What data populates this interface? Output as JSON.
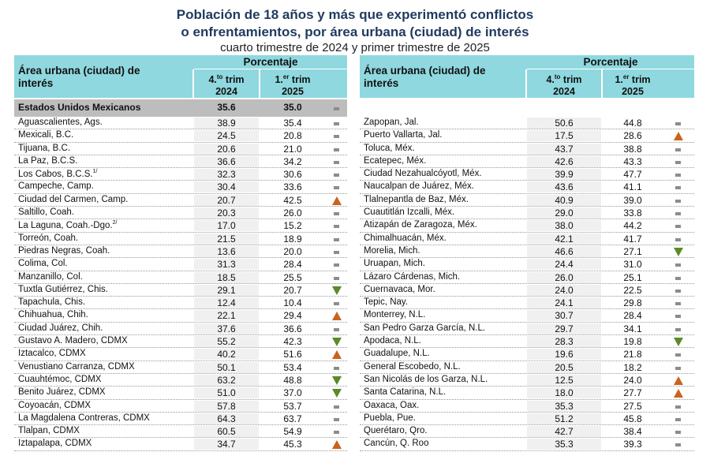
{
  "title": {
    "line1": "Población de 18 años y más que experimentó conflictos",
    "line2": "o enfrentamientos, por área urbana (ciudad) de interés",
    "subtitle": "cuarto trimestre de 2024 y primer trimestre de 2025"
  },
  "header": {
    "area_label": "Área urbana (ciudad) de interés",
    "percent_label": "Porcentaje",
    "col1_prefix": "4.",
    "col1_sup": "to",
    "col1_suffix": " trim",
    "col1_year": "2024",
    "col2_prefix": "1.",
    "col2_sup": "er",
    "col2_suffix": " trim",
    "col2_year": "2025"
  },
  "colors": {
    "header_bg": "#8fd8df",
    "total_bg": "#bdbdbd",
    "up": "#c8641e",
    "down": "#5b8a29",
    "equal": "#8c8c8c"
  },
  "total": {
    "name": "Estados Unidos Mexicanos",
    "v2024": "35.6",
    "v2025": "35.0",
    "trend": "eq"
  },
  "left_rows": [
    {
      "name": "Aguascalientes, Ags.",
      "v2024": "38.9",
      "v2025": "35.4",
      "trend": "eq"
    },
    {
      "name": "Mexicali, B.C.",
      "v2024": "24.5",
      "v2025": "20.8",
      "trend": "eq"
    },
    {
      "name": "Tijuana, B.C.",
      "v2024": "20.6",
      "v2025": "21.0",
      "trend": "eq"
    },
    {
      "name": "La Paz, B.C.S.",
      "v2024": "36.6",
      "v2025": "34.2",
      "trend": "eq"
    },
    {
      "name": "Los Cabos, B.C.S.",
      "note": "1/",
      "v2024": "32.3",
      "v2025": "30.6",
      "trend": "eq"
    },
    {
      "name": "Campeche, Camp.",
      "v2024": "30.4",
      "v2025": "33.6",
      "trend": "eq"
    },
    {
      "name": "Ciudad del Carmen, Camp.",
      "v2024": "20.7",
      "v2025": "42.5",
      "trend": "up"
    },
    {
      "name": "Saltillo, Coah.",
      "v2024": "20.3",
      "v2025": "26.0",
      "trend": "eq"
    },
    {
      "name": "La Laguna, Coah.-Dgo.",
      "note": "2/",
      "v2024": "17.0",
      "v2025": "15.2",
      "trend": "eq"
    },
    {
      "name": "Torreón, Coah.",
      "v2024": "21.5",
      "v2025": "18.9",
      "trend": "eq"
    },
    {
      "name": "Piedras Negras, Coah.",
      "v2024": "13.6",
      "v2025": "20.0",
      "trend": "eq"
    },
    {
      "name": "Colima, Col.",
      "v2024": "31.3",
      "v2025": "28.4",
      "trend": "eq"
    },
    {
      "name": "Manzanillo, Col.",
      "v2024": "18.5",
      "v2025": "25.5",
      "trend": "eq"
    },
    {
      "name": "Tuxtla Gutiérrez, Chis.",
      "v2024": "29.1",
      "v2025": "20.7",
      "trend": "down"
    },
    {
      "name": "Tapachula, Chis.",
      "v2024": "12.4",
      "v2025": "10.4",
      "trend": "eq"
    },
    {
      "name": "Chihuahua, Chih.",
      "v2024": "22.1",
      "v2025": "29.4",
      "trend": "up"
    },
    {
      "name": "Ciudad Juárez, Chih.",
      "v2024": "37.6",
      "v2025": "36.6",
      "trend": "eq"
    },
    {
      "name": "Gustavo A. Madero, CDMX",
      "v2024": "55.2",
      "v2025": "42.3",
      "trend": "down"
    },
    {
      "name": "Iztacalco, CDMX",
      "v2024": "40.2",
      "v2025": "51.6",
      "trend": "up"
    },
    {
      "name": "Venustiano Carranza, CDMX",
      "v2024": "50.1",
      "v2025": "53.4",
      "trend": "eq"
    },
    {
      "name": "Cuauhtémoc, CDMX",
      "v2024": "63.2",
      "v2025": "48.8",
      "trend": "down"
    },
    {
      "name": "Benito Juárez, CDMX",
      "v2024": "51.0",
      "v2025": "37.0",
      "trend": "down"
    },
    {
      "name": "Coyoacán, CDMX",
      "v2024": "57.8",
      "v2025": "53.7",
      "trend": "eq"
    },
    {
      "name": "La Magdalena Contreras, CDMX",
      "v2024": "64.3",
      "v2025": "63.7",
      "trend": "eq"
    },
    {
      "name": "Tlalpan, CDMX",
      "v2024": "60.5",
      "v2025": "54.9",
      "trend": "eq"
    },
    {
      "name": "Iztapalapa, CDMX",
      "v2024": "34.7",
      "v2025": "45.3",
      "trend": "up"
    }
  ],
  "right_rows": [
    {
      "name": "Zapopan, Jal.",
      "v2024": "50.6",
      "v2025": "44.8",
      "trend": "eq"
    },
    {
      "name": "Puerto Vallarta, Jal.",
      "v2024": "17.5",
      "v2025": "28.6",
      "trend": "up"
    },
    {
      "name": "Toluca, Méx.",
      "v2024": "43.7",
      "v2025": "38.8",
      "trend": "eq"
    },
    {
      "name": "Ecatepec, Méx.",
      "v2024": "42.6",
      "v2025": "43.3",
      "trend": "eq"
    },
    {
      "name": "Ciudad Nezahualcóyotl, Méx.",
      "v2024": "39.9",
      "v2025": "47.7",
      "trend": "eq"
    },
    {
      "name": "Naucalpan de Juárez, Méx.",
      "v2024": "43.6",
      "v2025": "41.1",
      "trend": "eq"
    },
    {
      "name": "Tlalnepantla de Baz, Méx.",
      "v2024": "40.9",
      "v2025": "39.0",
      "trend": "eq"
    },
    {
      "name": "Cuautitlán Izcalli, Méx.",
      "v2024": "29.0",
      "v2025": "33.8",
      "trend": "eq"
    },
    {
      "name": "Atizapán de Zaragoza, Méx.",
      "v2024": "38.0",
      "v2025": "44.2",
      "trend": "eq"
    },
    {
      "name": "Chimalhuacán, Méx.",
      "v2024": "42.1",
      "v2025": "41.7",
      "trend": "eq"
    },
    {
      "name": "Morelia, Mich.",
      "v2024": "46.6",
      "v2025": "27.1",
      "trend": "down"
    },
    {
      "name": "Uruapan, Mich.",
      "v2024": "24.4",
      "v2025": "31.0",
      "trend": "eq"
    },
    {
      "name": "Lázaro Cárdenas, Mich.",
      "v2024": "26.0",
      "v2025": "25.1",
      "trend": "eq"
    },
    {
      "name": "Cuernavaca, Mor.",
      "v2024": "24.0",
      "v2025": "22.5",
      "trend": "eq"
    },
    {
      "name": "Tepic, Nay.",
      "v2024": "24.1",
      "v2025": "29.8",
      "trend": "eq"
    },
    {
      "name": "Monterrey, N.L.",
      "v2024": "30.7",
      "v2025": "28.4",
      "trend": "eq"
    },
    {
      "name": "San Pedro Garza García, N.L.",
      "v2024": "29.7",
      "v2025": "34.1",
      "trend": "eq"
    },
    {
      "name": "Apodaca, N.L.",
      "v2024": "28.3",
      "v2025": "19.8",
      "trend": "down"
    },
    {
      "name": "Guadalupe, N.L.",
      "v2024": "19.6",
      "v2025": "21.8",
      "trend": "eq"
    },
    {
      "name": "General Escobedo, N.L.",
      "v2024": "20.5",
      "v2025": "18.2",
      "trend": "eq"
    },
    {
      "name": "San Nicolás de los Garza, N.L.",
      "v2024": "12.5",
      "v2025": "24.0",
      "trend": "up"
    },
    {
      "name": "Santa Catarina, N.L.",
      "v2024": "18.0",
      "v2025": "27.7",
      "trend": "up"
    },
    {
      "name": "Oaxaca, Oax.",
      "v2024": "35.3",
      "v2025": "27.5",
      "trend": "eq"
    },
    {
      "name": "Puebla, Pue.",
      "v2024": "51.2",
      "v2025": "45.8",
      "trend": "eq"
    },
    {
      "name": "Querétaro, Qro.",
      "v2024": "42.7",
      "v2025": "38.4",
      "trend": "eq"
    },
    {
      "name": "Cancún, Q. Roo",
      "v2024": "35.3",
      "v2025": "39.3",
      "trend": "eq"
    }
  ]
}
